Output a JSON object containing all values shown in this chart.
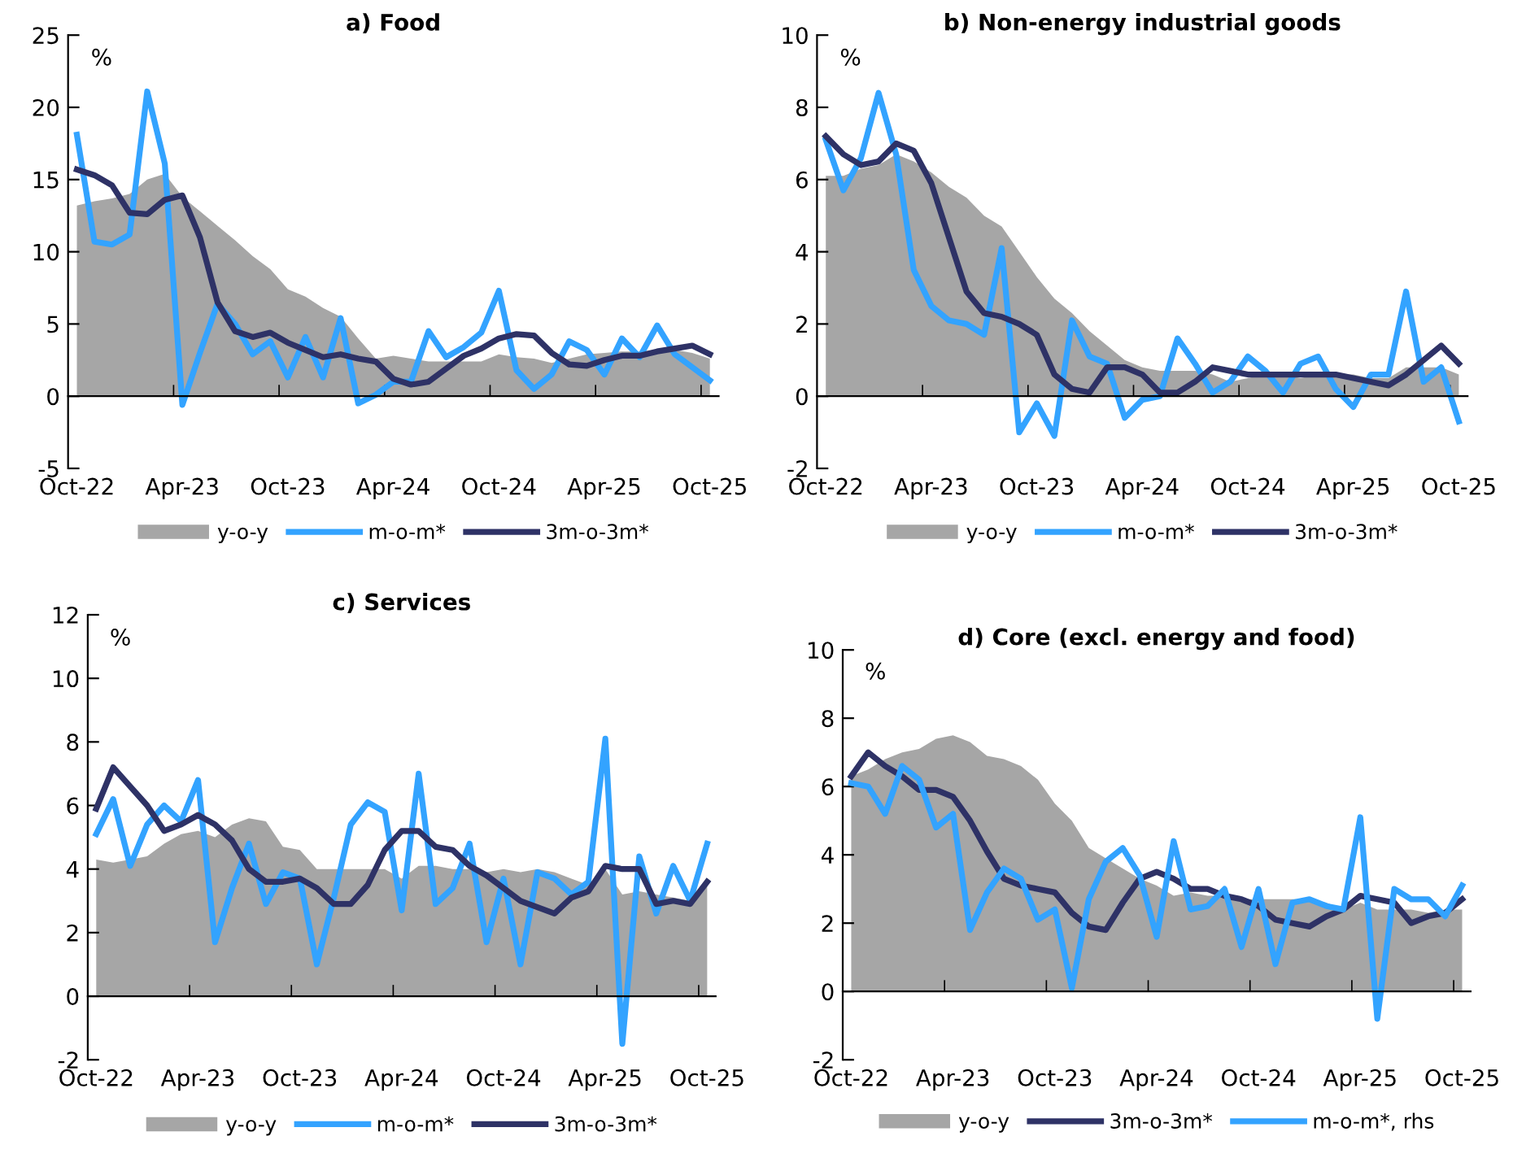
{
  "chart_data": [
    {
      "type": "line",
      "title": "a) Food",
      "ylabel": "%",
      "legend": "bottom",
      "ylim": [
        -5,
        25
      ],
      "yticks": [
        -5,
        0,
        5,
        10,
        15,
        20,
        25
      ],
      "categories": [
        "Oct-22",
        null,
        null,
        null,
        null,
        null,
        "Apr-23",
        null,
        null,
        null,
        null,
        null,
        "Oct-23",
        null,
        null,
        null,
        null,
        null,
        "Apr-24",
        null,
        null,
        null,
        null,
        null,
        "Oct-24",
        null,
        null,
        null,
        null,
        null,
        "Apr-25",
        null,
        null,
        null,
        null,
        null,
        "Oct-25"
      ],
      "series": [
        {
          "name": "y-o-y",
          "type": "area",
          "color": "#a6a6a6",
          "values": [
            13.2,
            13.5,
            13.7,
            14.0,
            15.0,
            15.4,
            13.8,
            12.8,
            11.8,
            10.8,
            9.7,
            8.8,
            7.4,
            6.9,
            6.1,
            5.5,
            4.0,
            2.6,
            2.8,
            2.6,
            2.4,
            2.4,
            2.4,
            2.4,
            2.9,
            2.7,
            2.6,
            2.3,
            2.6,
            2.9,
            3.0,
            3.1,
            3.1,
            3.2,
            3.2,
            3.0,
            2.6
          ]
        },
        {
          "name": "m-o-m*",
          "color": "#33a3ff",
          "values": [
            18.1,
            10.7,
            10.5,
            11.2,
            21.1,
            16.1,
            -0.6,
            3.0,
            6.4,
            5.0,
            2.9,
            3.8,
            1.3,
            4.1,
            1.3,
            5.4,
            -0.5,
            0.1,
            1.0,
            1.0,
            4.5,
            2.7,
            3.4,
            4.4,
            7.3,
            1.8,
            0.5,
            1.5,
            3.8,
            3.2,
            1.5,
            4.0,
            2.7,
            4.9,
            2.9,
            2.0,
            1.1
          ]
        },
        {
          "name": "3m-o-3m*",
          "color": "#2e3266",
          "values": [
            15.7,
            15.3,
            14.6,
            12.7,
            12.6,
            13.6,
            13.9,
            11.0,
            6.5,
            4.5,
            4.1,
            4.4,
            3.7,
            3.2,
            2.7,
            2.9,
            2.6,
            2.4,
            1.2,
            0.8,
            1.0,
            1.9,
            2.8,
            3.3,
            4.0,
            4.3,
            4.2,
            3.0,
            2.2,
            2.1,
            2.5,
            2.8,
            2.8,
            3.1,
            3.3,
            3.5,
            2.9
          ]
        }
      ]
    },
    {
      "type": "line",
      "title": "b) Non-energy industrial goods",
      "ylabel": "%",
      "legend": "bottom",
      "ylim": [
        -2,
        10
      ],
      "yticks": [
        -2,
        0,
        2,
        4,
        6,
        8,
        10
      ],
      "categories": [
        "Oct-22",
        null,
        null,
        null,
        null,
        null,
        "Apr-23",
        null,
        null,
        null,
        null,
        null,
        "Oct-23",
        null,
        null,
        null,
        null,
        null,
        "Apr-24",
        null,
        null,
        null,
        null,
        null,
        "Oct-24",
        null,
        null,
        null,
        null,
        null,
        "Apr-25",
        null,
        null,
        null,
        null,
        null,
        "Oct-25"
      ],
      "series": [
        {
          "name": "y-o-y",
          "type": "area",
          "color": "#a6a6a6",
          "values": [
            6.1,
            6.1,
            6.3,
            6.4,
            6.7,
            6.5,
            6.2,
            5.8,
            5.5,
            5.0,
            4.7,
            4.0,
            3.3,
            2.7,
            2.3,
            1.8,
            1.4,
            1.0,
            0.8,
            0.7,
            0.7,
            0.7,
            0.6,
            0.4,
            0.5,
            0.6,
            0.6,
            0.5,
            0.6,
            0.6,
            0.6,
            0.5,
            0.5,
            0.8,
            0.8,
            0.8,
            0.6
          ]
        },
        {
          "name": "m-o-m*",
          "color": "#33a3ff",
          "values": [
            7.1,
            5.7,
            6.6,
            8.4,
            6.7,
            3.5,
            2.5,
            2.1,
            2.0,
            1.7,
            4.1,
            -1.0,
            -0.2,
            -1.1,
            2.1,
            1.1,
            0.9,
            -0.6,
            -0.1,
            0.0,
            1.6,
            0.9,
            0.1,
            0.4,
            1.1,
            0.7,
            0.1,
            0.9,
            1.1,
            0.2,
            -0.3,
            0.6,
            0.6,
            2.9,
            0.4,
            0.8,
            -0.7
          ]
        },
        {
          "name": "3m-o-3m*",
          "color": "#2e3266",
          "values": [
            7.2,
            6.7,
            6.4,
            6.5,
            7.0,
            6.8,
            5.9,
            4.4,
            2.9,
            2.3,
            2.2,
            2.0,
            1.7,
            0.6,
            0.2,
            0.1,
            0.8,
            0.8,
            0.6,
            0.1,
            0.1,
            0.4,
            0.8,
            0.7,
            0.6,
            0.6,
            0.6,
            0.6,
            0.6,
            0.6,
            0.5,
            0.4,
            0.3,
            0.6,
            1.0,
            1.4,
            0.9
          ]
        }
      ]
    },
    {
      "type": "line",
      "title": "c) Services",
      "ylabel": "%",
      "legend": "bottom",
      "ylim": [
        -2,
        12
      ],
      "yticks": [
        -2,
        0,
        2,
        4,
        6,
        8,
        10,
        12
      ],
      "categories": [
        "Oct-22",
        null,
        null,
        null,
        null,
        null,
        "Apr-23",
        null,
        null,
        null,
        null,
        null,
        "Oct-23",
        null,
        null,
        null,
        null,
        null,
        "Apr-24",
        null,
        null,
        null,
        null,
        null,
        "Oct-24",
        null,
        null,
        null,
        null,
        null,
        "Apr-25",
        null,
        null,
        null,
        null,
        null,
        "Oct-25"
      ],
      "series": [
        {
          "name": "y-o-y",
          "type": "area",
          "color": "#a6a6a6",
          "values": [
            4.3,
            4.2,
            4.3,
            4.4,
            4.8,
            5.1,
            5.2,
            5.0,
            5.4,
            5.6,
            5.5,
            4.7,
            4.6,
            4.0,
            4.0,
            4.0,
            4.0,
            4.0,
            3.7,
            4.1,
            4.1,
            4.0,
            4.0,
            3.9,
            4.0,
            3.9,
            4.0,
            3.9,
            3.7,
            3.5,
            4.0,
            3.2,
            3.3,
            3.2,
            3.1,
            3.0,
            3.5
          ]
        },
        {
          "name": "m-o-m*",
          "color": "#33a3ff",
          "values": [
            5.1,
            6.2,
            4.1,
            5.4,
            6.0,
            5.5,
            6.8,
            1.7,
            3.4,
            4.8,
            2.9,
            3.9,
            3.7,
            1.0,
            3.1,
            5.4,
            6.1,
            5.8,
            2.7,
            7.0,
            2.9,
            3.4,
            4.8,
            1.7,
            3.7,
            1.0,
            3.9,
            3.7,
            3.2,
            3.6,
            8.1,
            -1.5,
            4.4,
            2.6,
            4.1,
            3.0,
            4.8
          ]
        },
        {
          "name": "3m-o-3m*",
          "color": "#2e3266",
          "values": [
            5.9,
            7.2,
            6.6,
            6.0,
            5.2,
            5.4,
            5.7,
            5.4,
            4.9,
            4.0,
            3.6,
            3.6,
            3.7,
            3.4,
            2.9,
            2.9,
            3.5,
            4.6,
            5.2,
            5.2,
            4.7,
            4.6,
            4.1,
            3.8,
            3.4,
            3.0,
            2.8,
            2.6,
            3.1,
            3.3,
            4.1,
            4.0,
            4.0,
            2.9,
            3.0,
            2.9,
            3.6
          ]
        }
      ]
    },
    {
      "type": "line",
      "title": "d) Core (excl. energy and food)",
      "ylabel": "%",
      "legend": "bottom",
      "ylim": [
        -2,
        10
      ],
      "yticks": [
        -2,
        0,
        2,
        4,
        6,
        8,
        10
      ],
      "categories": [
        "Oct-22",
        null,
        null,
        null,
        null,
        null,
        "Apr-23",
        null,
        null,
        null,
        null,
        null,
        "Oct-23",
        null,
        null,
        null,
        null,
        null,
        "Apr-24",
        null,
        null,
        null,
        null,
        null,
        "Oct-24",
        null,
        null,
        null,
        null,
        null,
        "Apr-25",
        null,
        null,
        null,
        null,
        null,
        "Oct-25"
      ],
      "series": [
        {
          "name": "y-o-y",
          "type": "area",
          "color": "#a6a6a6",
          "values": [
            6.3,
            6.5,
            6.8,
            7.0,
            7.1,
            7.4,
            7.5,
            7.3,
            6.9,
            6.8,
            6.6,
            6.2,
            5.5,
            5.0,
            4.2,
            3.9,
            3.6,
            3.3,
            3.1,
            2.8,
            2.9,
            2.8,
            2.8,
            2.7,
            2.7,
            2.7,
            2.7,
            2.7,
            2.6,
            2.4,
            2.6,
            2.4,
            2.4,
            2.4,
            2.3,
            2.4,
            2.4
          ]
        },
        {
          "name": "3m-o-3m*",
          "color": "#2e3266",
          "values": [
            6.3,
            7.0,
            6.6,
            6.3,
            5.9,
            5.9,
            5.7,
            5.0,
            4.1,
            3.3,
            3.1,
            3.0,
            2.9,
            2.3,
            1.9,
            1.8,
            2.6,
            3.3,
            3.5,
            3.3,
            3.0,
            3.0,
            2.8,
            2.7,
            2.5,
            2.1,
            2.0,
            1.9,
            2.2,
            2.4,
            2.8,
            2.7,
            2.6,
            2.0,
            2.2,
            2.3,
            2.7
          ]
        },
        {
          "name": "m-o-m*, rhs",
          "color": "#33a3ff",
          "values": [
            6.1,
            6.0,
            5.2,
            6.6,
            6.2,
            4.8,
            5.2,
            1.8,
            2.9,
            3.6,
            3.3,
            2.1,
            2.4,
            0.1,
            2.7,
            3.8,
            4.2,
            3.4,
            1.6,
            4.4,
            2.4,
            2.5,
            3.0,
            1.3,
            3.0,
            0.8,
            2.6,
            2.7,
            2.5,
            2.4,
            5.1,
            -0.8,
            3.0,
            2.7,
            2.7,
            2.2,
            3.1
          ]
        }
      ]
    }
  ]
}
